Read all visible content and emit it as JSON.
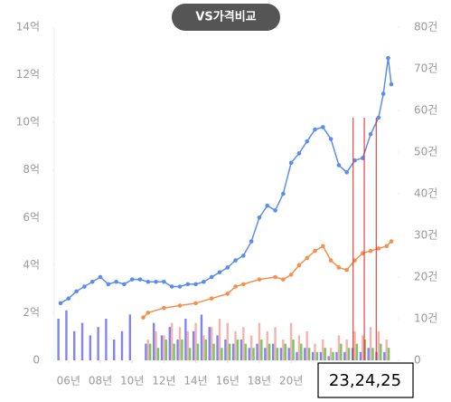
{
  "chart_data": {
    "type": "line",
    "title": "VS가격비교",
    "annotation": "23,24,25",
    "markers": {
      "color": "#e02020",
      "x": [
        2023.9,
        2024.6,
        2025.35
      ]
    },
    "xlim": [
      2005.1,
      2026.7
    ],
    "xticks": [
      {
        "value": 2006,
        "label": "06년"
      },
      {
        "value": 2008,
        "label": "08년"
      },
      {
        "value": 2010,
        "label": "10년"
      },
      {
        "value": 2012,
        "label": "12년"
      },
      {
        "value": 2014,
        "label": "14년"
      },
      {
        "value": 2016,
        "label": "16년"
      },
      {
        "value": 2018,
        "label": "18년"
      },
      {
        "value": 2020,
        "label": "20년"
      }
    ],
    "ylim": [
      0,
      14
    ],
    "yticks": [
      0,
      {
        "value": 2,
        "label": "2억"
      },
      {
        "value": 4,
        "label": "4억"
      },
      {
        "value": 6,
        "label": "6억"
      },
      {
        "value": 8,
        "label": "8억"
      },
      {
        "value": 10,
        "label": "10억"
      },
      {
        "value": 12,
        "label": "12억"
      },
      {
        "value": 14,
        "label": "14억"
      }
    ],
    "y2lim": [
      0,
      80
    ],
    "y2ticks": [
      0,
      {
        "value": 10,
        "label": "10건"
      },
      {
        "value": 20,
        "label": "20건"
      },
      {
        "value": 30,
        "label": "30건"
      },
      {
        "value": 40,
        "label": "40건"
      },
      {
        "value": 50,
        "label": "50건"
      },
      {
        "value": 60,
        "label": "60건"
      },
      {
        "value": 70,
        "label": "70건"
      },
      {
        "value": 80,
        "label": "80건"
      }
    ],
    "series": [
      {
        "type": "bar",
        "axis": "y2",
        "color": "#6b6ff0",
        "x": [
          2005.5,
          2006,
          2006.5,
          2007,
          2007.5,
          2008,
          2008.5,
          2009,
          2009.5,
          2010,
          2010.5,
          2011,
          2011.5,
          2012,
          2012.5,
          2013,
          2013.5,
          2014,
          2014.5,
          2015,
          2015.5,
          2016,
          2016.5,
          2017,
          2017.5,
          2018,
          2018.5,
          2019,
          2019.5,
          2020,
          2020.5,
          2021,
          2021.5,
          2022,
          2022.5,
          2023,
          2023.5,
          2024,
          2024.5,
          2025,
          2025.5,
          2026
        ],
        "values": [
          10,
          12,
          7,
          9,
          6,
          8,
          10,
          5,
          7,
          11,
          0,
          4,
          9,
          6,
          8,
          5,
          10,
          7,
          11,
          8,
          6,
          5,
          4,
          5,
          3,
          4,
          3,
          4,
          3,
          3,
          2,
          3,
          2,
          2,
          1,
          2,
          2,
          3,
          2,
          3,
          2,
          2
        ]
      },
      {
        "type": "bar",
        "axis": "y2",
        "color": "#f4a6a0",
        "x": [
          2005.5,
          2006,
          2006.5,
          2007,
          2007.5,
          2008,
          2008.5,
          2009,
          2009.5,
          2010,
          2010.5,
          2011,
          2011.5,
          2012,
          2012.5,
          2013,
          2013.5,
          2014,
          2014.5,
          2015,
          2015.5,
          2016,
          2016.5,
          2017,
          2017.5,
          2018,
          2018.5,
          2019,
          2019.5,
          2020,
          2020.5,
          2021,
          2021.5,
          2022,
          2022.5,
          2023,
          2023.5,
          2024,
          2024.5,
          2025,
          2025.5,
          2026
        ],
        "values": [
          0,
          0,
          0,
          0,
          0,
          0,
          0,
          0,
          0,
          0,
          0,
          5,
          7,
          6,
          9,
          8,
          7,
          9,
          6,
          8,
          10,
          9,
          7,
          8,
          6,
          9,
          7,
          8,
          5,
          9,
          6,
          7,
          4,
          5,
          3,
          6,
          5,
          7,
          6,
          8,
          7,
          5
        ]
      },
      {
        "type": "bar",
        "axis": "y2",
        "color": "#5cbf4a",
        "x": [
          2005.5,
          2006,
          2006.5,
          2007,
          2007.5,
          2008,
          2008.5,
          2009,
          2009.5,
          2010,
          2010.5,
          2011,
          2011.5,
          2012,
          2012.5,
          2013,
          2013.5,
          2014,
          2014.5,
          2015,
          2015.5,
          2016,
          2016.5,
          2017,
          2017.5,
          2018,
          2018.5,
          2019,
          2019.5,
          2020,
          2020.5,
          2021,
          2021.5,
          2022,
          2022.5,
          2023,
          2023.5,
          2024,
          2024.5,
          2025,
          2025.5,
          2026
        ],
        "values": [
          0,
          0,
          0,
          0,
          0,
          0,
          0,
          0,
          0,
          0,
          0,
          4,
          3,
          5,
          4,
          5,
          3,
          4,
          5,
          4,
          3,
          4,
          5,
          4,
          3,
          5,
          4,
          3,
          4,
          5,
          4,
          3,
          2,
          3,
          2,
          4,
          3,
          4,
          5,
          3,
          4,
          3
        ]
      },
      {
        "type": "line",
        "color": "#f5904f",
        "x": [
          2010.7,
          2011,
          2012,
          2013,
          2014,
          2015,
          2016,
          2016.5,
          2017,
          2018,
          2019,
          2019.5,
          2020,
          2020.5,
          2021,
          2021.5,
          2022,
          2022.5,
          2023,
          2023.5,
          2024,
          2024.5,
          2025,
          2025.5,
          2026,
          2026.3
        ],
        "values": [
          1.8,
          2.0,
          2.2,
          2.3,
          2.4,
          2.6,
          2.8,
          3.1,
          3.2,
          3.4,
          3.5,
          3.4,
          3.6,
          4.0,
          4.3,
          4.6,
          4.8,
          4.2,
          3.9,
          3.8,
          4.2,
          4.5,
          4.6,
          4.7,
          4.8,
          5.0
        ]
      },
      {
        "type": "line",
        "color": "#5b8def",
        "x": [
          2005.5,
          2006,
          2006.5,
          2007,
          2007.5,
          2008,
          2008.5,
          2009,
          2009.5,
          2010,
          2010.5,
          2011,
          2011.5,
          2012,
          2012.5,
          2013,
          2013.5,
          2014,
          2014.5,
          2015,
          2015.5,
          2016,
          2016.5,
          2017,
          2017.5,
          2018,
          2018.5,
          2019,
          2019.5,
          2020,
          2020.5,
          2021,
          2021.5,
          2022,
          2022.5,
          2023,
          2023.5,
          2024,
          2024.5,
          2025,
          2025.5,
          2025.8,
          2026.1,
          2026.3
        ],
        "values": [
          2.4,
          2.6,
          2.9,
          3.1,
          3.3,
          3.5,
          3.2,
          3.3,
          3.2,
          3.4,
          3.4,
          3.3,
          3.3,
          3.3,
          3.1,
          3.1,
          3.2,
          3.2,
          3.3,
          3.5,
          3.7,
          3.9,
          4.2,
          4.4,
          5.0,
          6.0,
          6.5,
          6.3,
          7.0,
          8.3,
          8.7,
          9.2,
          9.7,
          9.8,
          9.3,
          8.2,
          7.9,
          8.4,
          8.5,
          9.5,
          10.2,
          11.2,
          12.7,
          11.6
        ]
      }
    ]
  }
}
